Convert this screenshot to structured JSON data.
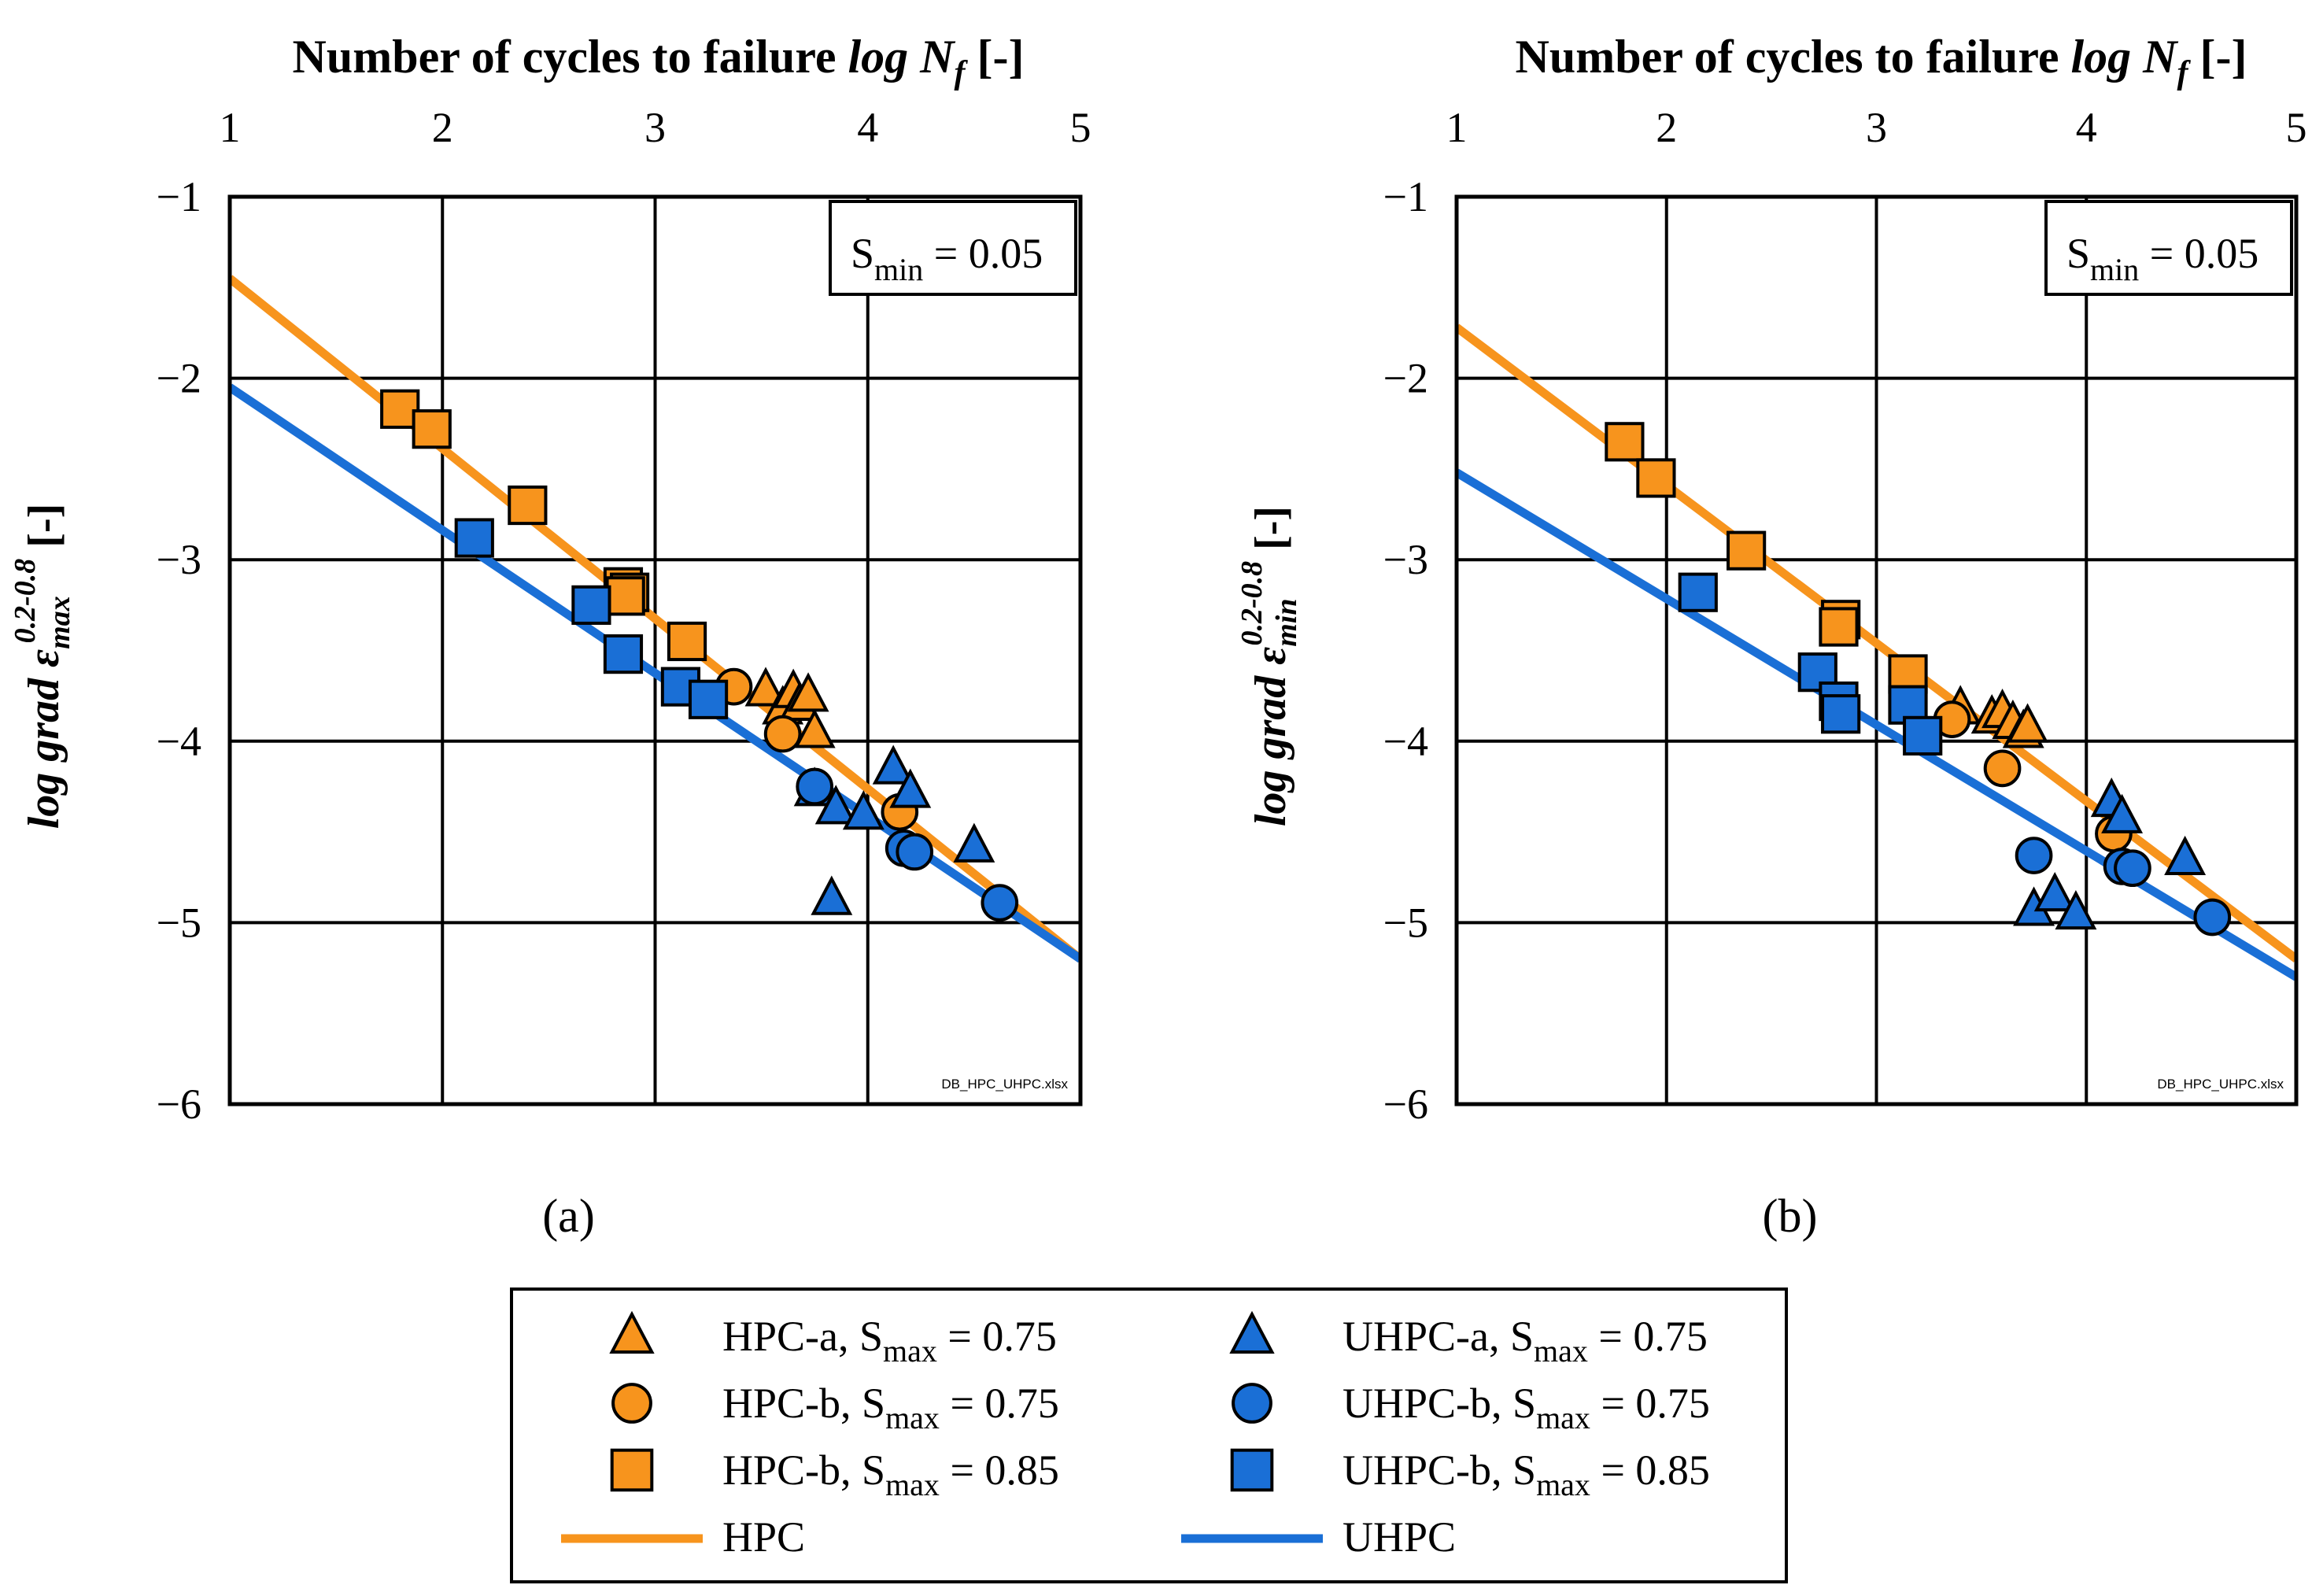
{
  "chart_data": [
    {
      "panel": "a",
      "panel_label": "(a)",
      "type": "scatter",
      "x_axis_title": "Number of cycles to failure",
      "x_axis_var": "log N",
      "x_axis_sub": "f",
      "x_axis_unit": "[-]",
      "x_ticks": [
        "1",
        "2",
        "3",
        "4",
        "5"
      ],
      "xlim": [
        1,
        5
      ],
      "y_axis_prefix": "log grad ε",
      "y_axis_sub": "max",
      "y_axis_sup": "0.2-0.8",
      "y_axis_unit": "[-]",
      "y_ticks": [
        "−1",
        "−2",
        "−3",
        "−4",
        "−5",
        "−6"
      ],
      "ylim": [
        -6,
        -1
      ],
      "smin_label": "S",
      "smin_sub": "min",
      "smin_value": " = 0.05",
      "file_label": "DB_HPC_UHPC.xlsx",
      "lines": [
        {
          "name": "HPC",
          "color": "#f7941d",
          "x": [
            1,
            5
          ],
          "y": [
            -1.45,
            -5.2
          ]
        },
        {
          "name": "UHPC",
          "color": "#1a6fd6",
          "x": [
            1,
            5
          ],
          "y": [
            -2.05,
            -5.2
          ]
        }
      ],
      "series": [
        {
          "name": "HPC-a",
          "marker": "triangle",
          "color": "#f7941d",
          "points": [
            [
              3.52,
              -3.72
            ],
            [
              3.6,
              -3.82
            ],
            [
              3.65,
              -3.73
            ],
            [
              3.68,
              -3.8
            ],
            [
              3.72,
              -3.75
            ],
            [
              3.75,
              -3.95
            ]
          ]
        },
        {
          "name": "HPC-b 0.75",
          "marker": "circle",
          "color": "#f7941d",
          "points": [
            [
              3.37,
              -3.7
            ],
            [
              3.6,
              -3.96
            ],
            [
              4.15,
              -4.39
            ]
          ]
        },
        {
          "name": "HPC-b 0.85",
          "marker": "square",
          "color": "#f7941d",
          "points": [
            [
              1.8,
              -2.17
            ],
            [
              1.95,
              -2.28
            ],
            [
              2.4,
              -2.7
            ],
            [
              2.85,
              -3.15
            ],
            [
              2.88,
              -3.18
            ],
            [
              2.86,
              -3.2
            ],
            [
              3.15,
              -3.45
            ]
          ]
        },
        {
          "name": "UHPC-a",
          "marker": "triangle",
          "color": "#1a6fd6",
          "points": [
            [
              3.75,
              -4.27
            ],
            [
              3.85,
              -4.37
            ],
            [
              3.98,
              -4.4
            ],
            [
              4.12,
              -4.15
            ],
            [
              4.2,
              -4.28
            ],
            [
              4.5,
              -4.58
            ],
            [
              3.83,
              -4.87
            ]
          ]
        },
        {
          "name": "UHPC-b 0.75",
          "marker": "circle",
          "color": "#1a6fd6",
          "points": [
            [
              3.75,
              -4.25
            ],
            [
              4.17,
              -4.59
            ],
            [
              4.22,
              -4.61
            ],
            [
              4.62,
              -4.89
            ]
          ]
        },
        {
          "name": "UHPC-b 0.85",
          "marker": "square",
          "color": "#1a6fd6",
          "points": [
            [
              2.15,
              -2.88
            ],
            [
              2.7,
              -3.25
            ],
            [
              2.85,
              -3.52
            ],
            [
              3.12,
              -3.7
            ],
            [
              3.25,
              -3.77
            ]
          ]
        }
      ]
    },
    {
      "panel": "b",
      "panel_label": "(b)",
      "type": "scatter",
      "x_axis_title": "Number of cycles to failure",
      "x_axis_var": "log N",
      "x_axis_sub": "f",
      "x_axis_unit": "[-]",
      "x_ticks": [
        "1",
        "2",
        "3",
        "4",
        "5"
      ],
      "xlim": [
        1,
        5
      ],
      "y_axis_prefix": "log grad ε",
      "y_axis_sub": "min",
      "y_axis_sup": "0.2-0.8",
      "y_axis_unit": "[-]",
      "y_ticks": [
        "−1",
        "−2",
        "−3",
        "−4",
        "−5",
        "−6"
      ],
      "ylim": [
        -6,
        -1
      ],
      "smin_label": "S",
      "smin_sub": "min",
      "smin_value": " = 0.05",
      "file_label": "DB_HPC_UHPC.xlsx",
      "lines": [
        {
          "name": "HPC",
          "color": "#f7941d",
          "x": [
            1,
            5
          ],
          "y": [
            -1.72,
            -5.2
          ]
        },
        {
          "name": "UHPC",
          "color": "#1a6fd6",
          "x": [
            1,
            5
          ],
          "y": [
            -2.52,
            -5.3
          ]
        }
      ],
      "series": [
        {
          "name": "HPC-a",
          "marker": "triangle",
          "color": "#f7941d",
          "points": [
            [
              3.4,
              -3.82
            ],
            [
              3.55,
              -3.87
            ],
            [
              3.6,
              -3.84
            ],
            [
              3.65,
              -3.9
            ],
            [
              3.7,
              -3.95
            ],
            [
              3.72,
              -3.92
            ]
          ]
        },
        {
          "name": "HPC-b 0.75",
          "marker": "circle",
          "color": "#f7941d",
          "points": [
            [
              3.36,
              -3.88
            ],
            [
              3.6,
              -4.15
            ],
            [
              4.13,
              -4.51
            ]
          ]
        },
        {
          "name": "HPC-b 0.85",
          "marker": "square",
          "color": "#f7941d",
          "points": [
            [
              1.8,
              -2.35
            ],
            [
              1.95,
              -2.55
            ],
            [
              2.38,
              -2.95
            ],
            [
              2.83,
              -3.33
            ],
            [
              2.82,
              -3.37
            ],
            [
              3.15,
              -3.63
            ]
          ]
        },
        {
          "name": "UHPC-a",
          "marker": "triangle",
          "color": "#1a6fd6",
          "points": [
            [
              3.75,
              -4.93
            ],
            [
              3.85,
              -4.85
            ],
            [
              3.95,
              -4.95
            ],
            [
              4.12,
              -4.33
            ],
            [
              4.17,
              -4.42
            ],
            [
              4.47,
              -4.65
            ]
          ]
        },
        {
          "name": "UHPC-b 0.75",
          "marker": "circle",
          "color": "#1a6fd6",
          "points": [
            [
              3.75,
              -4.63
            ],
            [
              4.17,
              -4.69
            ],
            [
              4.22,
              -4.7
            ],
            [
              4.6,
              -4.97
            ]
          ]
        },
        {
          "name": "UHPC-b 0.85",
          "marker": "square",
          "color": "#1a6fd6",
          "points": [
            [
              2.15,
              -3.18
            ],
            [
              2.72,
              -3.62
            ],
            [
              2.82,
              -3.78
            ],
            [
              2.83,
              -3.85
            ],
            [
              3.15,
              -3.8
            ],
            [
              3.22,
              -3.97
            ]
          ]
        }
      ]
    }
  ],
  "legend": {
    "items": [
      {
        "marker": "triangle",
        "color": "#f7941d",
        "label": "HPC-a, S",
        "sub": "max",
        "value": " = 0.75"
      },
      {
        "marker": "triangle",
        "color": "#1a6fd6",
        "label": "UHPC-a, S",
        "sub": "max",
        "value": " = 0.75"
      },
      {
        "marker": "circle",
        "color": "#f7941d",
        "label": "HPC-b, S",
        "sub": "max",
        "value": " = 0.75"
      },
      {
        "marker": "circle",
        "color": "#1a6fd6",
        "label": "UHPC-b, S",
        "sub": "max",
        "value": " = 0.75"
      },
      {
        "marker": "square",
        "color": "#f7941d",
        "label": "HPC-b, S",
        "sub": "max",
        "value": " = 0.85"
      },
      {
        "marker": "square",
        "color": "#1a6fd6",
        "label": "UHPC-b, S",
        "sub": "max",
        "value": " = 0.85"
      },
      {
        "marker": "line",
        "color": "#f7941d",
        "label": "HPC",
        "sub": "",
        "value": ""
      },
      {
        "marker": "line",
        "color": "#1a6fd6",
        "label": "UHPC",
        "sub": "",
        "value": ""
      }
    ]
  }
}
